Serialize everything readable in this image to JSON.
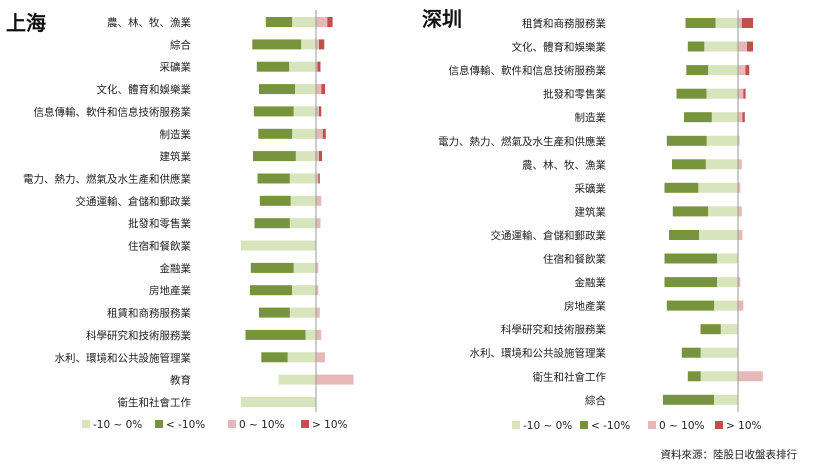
{
  "colors": {
    "neg_small": "#d8e4bc",
    "neg_large": "#77933c",
    "pos_small": "#e6b9b8",
    "pos_large": "#c0504d",
    "axis": "#999999"
  },
  "legend": [
    "-10 ~ 0%",
    "< -10%",
    "0 ~ 10%",
    "> 10%"
  ],
  "source": "資料來源：陸股日收盤表排行",
  "chart_data": [
    {
      "type": "bar",
      "title": "上海",
      "stacked": true,
      "orientation": "horizontal",
      "categories": [
        "農、林、牧、漁業",
        "綜合",
        "采礦業",
        "文化、體育和娛樂業",
        "信息傳輸、軟件和信息技術服務業",
        "制造業",
        "建筑業",
        "電力、熱力、燃氣及水生產和供應業",
        "交通運輸、倉儲和郵政業",
        "批發和零售業",
        "住宿和餐飲業",
        "金融業",
        "房地產業",
        "租賃和商務服務業",
        "科學研究和技術服務業",
        "水利、環境和公共設施管理業",
        "教育",
        "衛生和社會工作"
      ],
      "series": [
        {
          "name": "-10 ~ 0%",
          "values": [
            -32,
            -20,
            -36,
            -28,
            -30,
            -32,
            -27,
            -35,
            -34,
            -35,
            -100,
            -30,
            -32,
            -35,
            -14,
            -38,
            -50,
            -100
          ]
        },
        {
          "name": "< -10%",
          "values": [
            -35,
            -65,
            -43,
            -48,
            -53,
            -45,
            -57,
            -43,
            -41,
            -47,
            0,
            -57,
            -56,
            -41,
            -80,
            -35,
            0,
            0
          ]
        },
        {
          "name": "0 ~ 10%",
          "values": [
            15,
            4,
            2,
            7,
            4,
            9,
            4,
            3,
            7,
            6,
            0,
            3,
            3,
            5,
            7,
            12,
            50,
            0
          ]
        },
        {
          "name": "> 10%",
          "values": [
            7,
            7,
            4,
            5,
            3,
            4,
            4,
            2,
            0,
            0,
            0,
            0,
            0,
            0,
            0,
            0,
            0,
            0
          ]
        }
      ]
    },
    {
      "type": "bar",
      "title": "深圳",
      "stacked": true,
      "orientation": "horizontal",
      "categories": [
        "租賃和商務服務業",
        "文化、體育和娛樂業",
        "信息傳輸、軟件和信息技術服務業",
        "批發和零售業",
        "制造業",
        "電力、熱力、燃氣及水生產和供應業",
        "農、林、牧、漁業",
        "采礦業",
        "建筑業",
        "交通運輸、倉儲和郵政業",
        "住宿和餐飲業",
        "金融業",
        "房地產業",
        "科學研究和技術服務業",
        "水利、環境和公共設施管理業",
        "衛生和社會工作",
        "綜合"
      ],
      "series": [
        {
          "name": "-10 ~ 0%",
          "values": [
            -30,
            -45,
            -40,
            -42,
            -35,
            -42,
            -43,
            -53,
            -40,
            -52,
            -28,
            -28,
            -32,
            -23,
            -50,
            -50,
            -32
          ]
        },
        {
          "name": "< -10%",
          "values": [
            -40,
            -22,
            -29,
            -40,
            -37,
            -53,
            -45,
            -45,
            -47,
            -40,
            -70,
            -70,
            -63,
            -27,
            -25,
            -17,
            -68
          ]
        },
        {
          "name": "0 ~ 10%",
          "values": [
            5,
            12,
            10,
            7,
            6,
            2,
            5,
            3,
            5,
            6,
            0,
            3,
            7,
            0,
            0,
            33,
            0
          ]
        },
        {
          "name": "> 10%",
          "values": [
            15,
            8,
            5,
            3,
            3,
            0,
            0,
            0,
            0,
            0,
            0,
            0,
            0,
            0,
            0,
            0,
            0
          ]
        }
      ]
    }
  ]
}
